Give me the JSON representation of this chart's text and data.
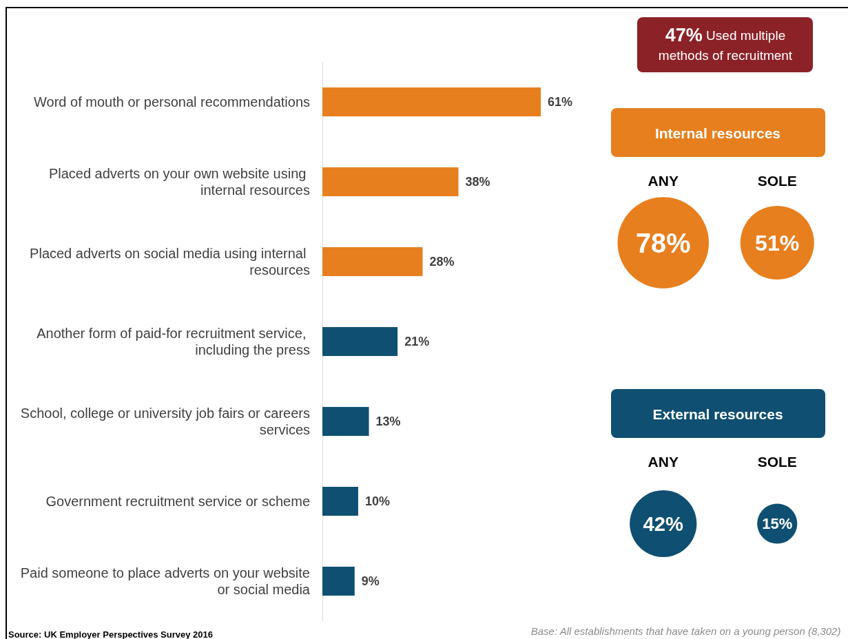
{
  "chart_data": [
    {
      "type": "bar",
      "orientation": "horizontal",
      "categories": [
        "Word of mouth or personal recommendations",
        "Placed adverts on your own website using internal resources",
        "Placed adverts on social media using internal resources",
        "Another form of paid-for recruitment service, including the press",
        "School, college or university job fairs or careers services",
        "Government recruitment service or scheme",
        "Paid someone to place adverts on your website or social media"
      ],
      "values": [
        61,
        38,
        28,
        21,
        13,
        10,
        9
      ],
      "colors": [
        "#e77f1e",
        "#e77f1e",
        "#e77f1e",
        "#0f4f72",
        "#0f4f72",
        "#0f4f72",
        "#0f4f72"
      ],
      "value_labels": [
        "61%",
        "38%",
        "28%",
        "21%",
        "13%",
        "10%",
        "9%"
      ],
      "tick_labels": "y",
      "grid": false,
      "annotations": [
        "Source: UK Employer Perspectives Survey 2016",
        "Base: All establishments that have taken on a young person (8,302)"
      ]
    },
    {
      "type": "other",
      "categories": [
        "ANY",
        "SOLE"
      ],
      "series": [
        {
          "name": "Internal resources",
          "color": "#e77f1e",
          "values": [
            78,
            51
          ],
          "value_labels": [
            "78%",
            "51%"
          ]
        },
        {
          "name": "External resources",
          "color": "#0f4f72",
          "values": [
            42,
            15
          ],
          "value_labels": [
            "42%",
            "15%"
          ]
        }
      ],
      "annotations": [
        "47% Used multiple methods of recruitment"
      ]
    }
  ]
}
